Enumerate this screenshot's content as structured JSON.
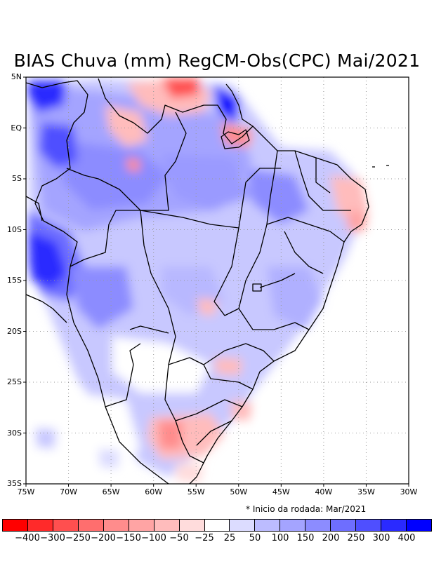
{
  "title": "BIAS Chuva (mm) RegCM-Obs(CPC) Mai/2021",
  "lat_labels": [
    "5N",
    "EQ",
    "5S",
    "10S",
    "15S",
    "20S",
    "25S",
    "30S",
    "35S"
  ],
  "lon_labels": [
    "75W",
    "70W",
    "65W",
    "60W",
    "55W",
    "50W",
    "45W",
    "40W",
    "35W",
    "30W"
  ],
  "note": "* Inicio da rodada: Mar/2021",
  "colorbar": {
    "colors": [
      "#ff0000",
      "#ff2a2a",
      "#ff4f4f",
      "#ff6e6e",
      "#ff8c8c",
      "#ffa4a4",
      "#ffbcbc",
      "#ffdcdc",
      "#ffffff",
      "#dcdcff",
      "#bcbcff",
      "#a4a4ff",
      "#8c8cff",
      "#6e6eff",
      "#4f4fff",
      "#2a2aff",
      "#0000ff"
    ],
    "labels": [
      "-400",
      "-300",
      "-250",
      "-200",
      "-150",
      "-100",
      "-50",
      "-25",
      "25",
      "50",
      "100",
      "150",
      "200",
      "250",
      "300",
      "400"
    ]
  },
  "colors": {
    "coast": "#000000",
    "grid": "#999999",
    "frame": "#000000"
  }
}
